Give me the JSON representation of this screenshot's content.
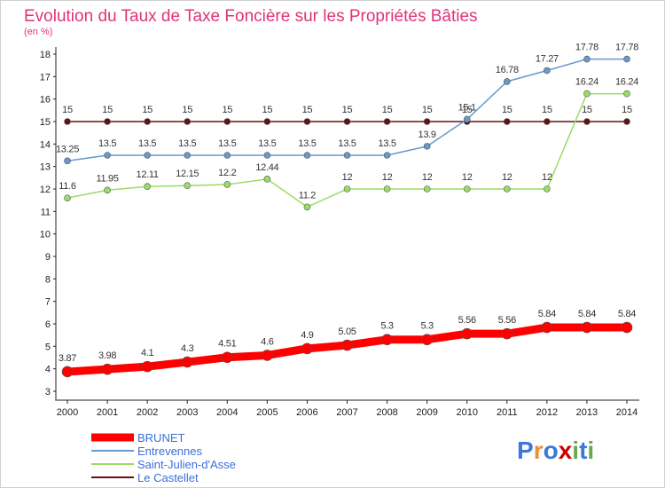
{
  "chart_data": {
    "type": "line",
    "title": "Evolution du Taux de Taxe Foncière sur les Propriétés Bâties",
    "ylabel": "(en %)",
    "xlabel": "",
    "categories": [
      "2000",
      "2001",
      "2002",
      "2003",
      "2004",
      "2005",
      "2006",
      "2007",
      "2008",
      "2009",
      "2010",
      "2011",
      "2012",
      "2013",
      "2014"
    ],
    "ylim": [
      3,
      18
    ],
    "yticks": [
      "3",
      "4",
      "5",
      "6",
      "7",
      "8",
      "9",
      "10",
      "11",
      "12",
      "13",
      "14",
      "15",
      "16",
      "17",
      "18"
    ],
    "grid": false,
    "legend_position": "bottom-left",
    "series": [
      {
        "name": "BRUNET",
        "color": "#ff0000",
        "values": [
          3.87,
          3.98,
          4.1,
          4.3,
          4.51,
          4.6,
          4.9,
          5.05,
          5.3,
          5.3,
          5.56,
          5.56,
          5.84,
          5.84,
          5.84
        ],
        "labels": [
          "3.87",
          "3.98",
          "4.1",
          "4.3",
          "4.51",
          "4.6",
          "4.9",
          "5.05",
          "5.3",
          "5.3",
          "5.56",
          "5.56",
          "5.84",
          "5.84",
          "5.84"
        ]
      },
      {
        "name": "Entrevennes",
        "color": "#6699cc",
        "values": [
          13.25,
          13.5,
          13.5,
          13.5,
          13.5,
          13.5,
          13.5,
          13.5,
          13.5,
          13.9,
          15.1,
          16.78,
          17.27,
          17.78,
          17.78
        ],
        "labels": [
          "13.25",
          "13.5",
          "13.5",
          "13.5",
          "13.5",
          "13.5",
          "13.5",
          "13.5",
          "13.5",
          "13.9",
          "15.1",
          "16.78",
          "17.27",
          "17.78",
          "17.78"
        ]
      },
      {
        "name": "Saint-Julien-d'Asse",
        "color": "#99dd66",
        "values": [
          11.6,
          11.95,
          12.11,
          12.15,
          12.2,
          12.44,
          11.2,
          12,
          12,
          12,
          12,
          12,
          12,
          16.24,
          16.24
        ],
        "labels": [
          "11.6",
          "11.95",
          "12.11",
          "12.15",
          "12.2",
          "12.44",
          "11.2",
          "12",
          "12",
          "12",
          "12",
          "12",
          "12",
          "16.24",
          "16.24"
        ]
      },
      {
        "name": "Le Castellet",
        "color": "#661111",
        "values": [
          15,
          15,
          15,
          15,
          15,
          15,
          15,
          15,
          15,
          15,
          15,
          15,
          15,
          15,
          15
        ],
        "labels": [
          "15",
          "15",
          "15",
          "15",
          "15",
          "15",
          "15",
          "15",
          "15",
          "15",
          "15",
          "15",
          "15",
          "15",
          "15"
        ]
      }
    ]
  },
  "logo": {
    "text": "Proxiti",
    "letters": [
      "P",
      "r",
      "o",
      "x",
      "i",
      "t",
      "i"
    ]
  }
}
